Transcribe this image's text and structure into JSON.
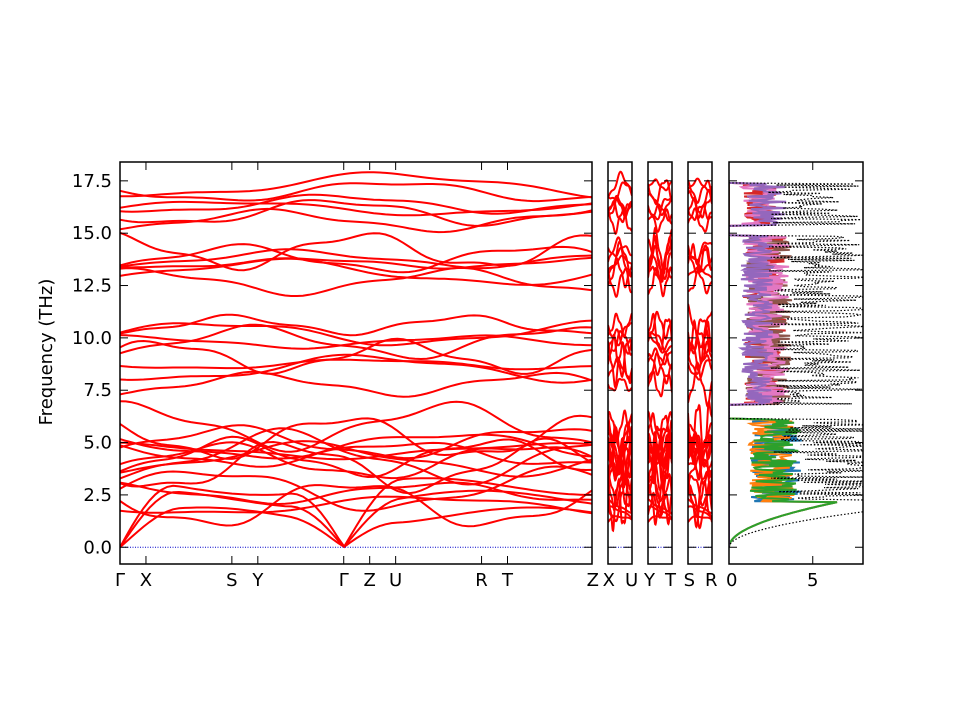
{
  "chart_data": {
    "type": "line",
    "title": "",
    "ylabel": "Frequency (THz)",
    "ylim": [
      -0.8,
      18.4
    ],
    "yticks": [
      "0.0",
      "2.5",
      "5.0",
      "7.5",
      "10.0",
      "12.5",
      "15.0",
      "17.5"
    ],
    "ytick_values": [
      0,
      2.5,
      5,
      7.5,
      10,
      12.5,
      15,
      17.5
    ],
    "colors": {
      "bands": "#ff0000",
      "zero_line": "#0000cc",
      "total_dos": "#000000",
      "projected_dos": [
        "#1f77b4",
        "#ff7f0e",
        "#2ca02c",
        "#d62728",
        "#8c564b",
        "#e377c2",
        "#9467bd"
      ]
    },
    "band_segments": [
      {
        "path": "Γ-X-S-Y-Γ-Z-U-R-T-Z",
        "labels": [
          "Γ",
          "X",
          "S",
          "Y",
          "Γ",
          "Z",
          "U",
          "R",
          "T",
          "Z"
        ],
        "label_positions": [
          0,
          0.055,
          0.237,
          0.292,
          0.474,
          0.529,
          0.584,
          0.766,
          0.821,
          1.0
        ]
      },
      {
        "path": "X-U",
        "labels": [
          "X",
          "U"
        ],
        "label_positions": [
          0,
          1
        ]
      },
      {
        "path": "Y-T",
        "labels": [
          "Y",
          "T"
        ],
        "label_positions": [
          0,
          1
        ]
      },
      {
        "path": "S-R",
        "labels": [
          "S",
          "R"
        ],
        "label_positions": [
          0,
          1
        ]
      }
    ],
    "band_count": 36,
    "band_ranges_THz": [
      [
        0,
        6.1
      ],
      [
        6.8,
        14.9
      ],
      [
        15.4,
        17.4
      ]
    ],
    "dos": {
      "xlim": [
        0,
        8
      ],
      "xticks": [
        "0",
        "5"
      ],
      "xtick_values": [
        0,
        5
      ]
    }
  }
}
